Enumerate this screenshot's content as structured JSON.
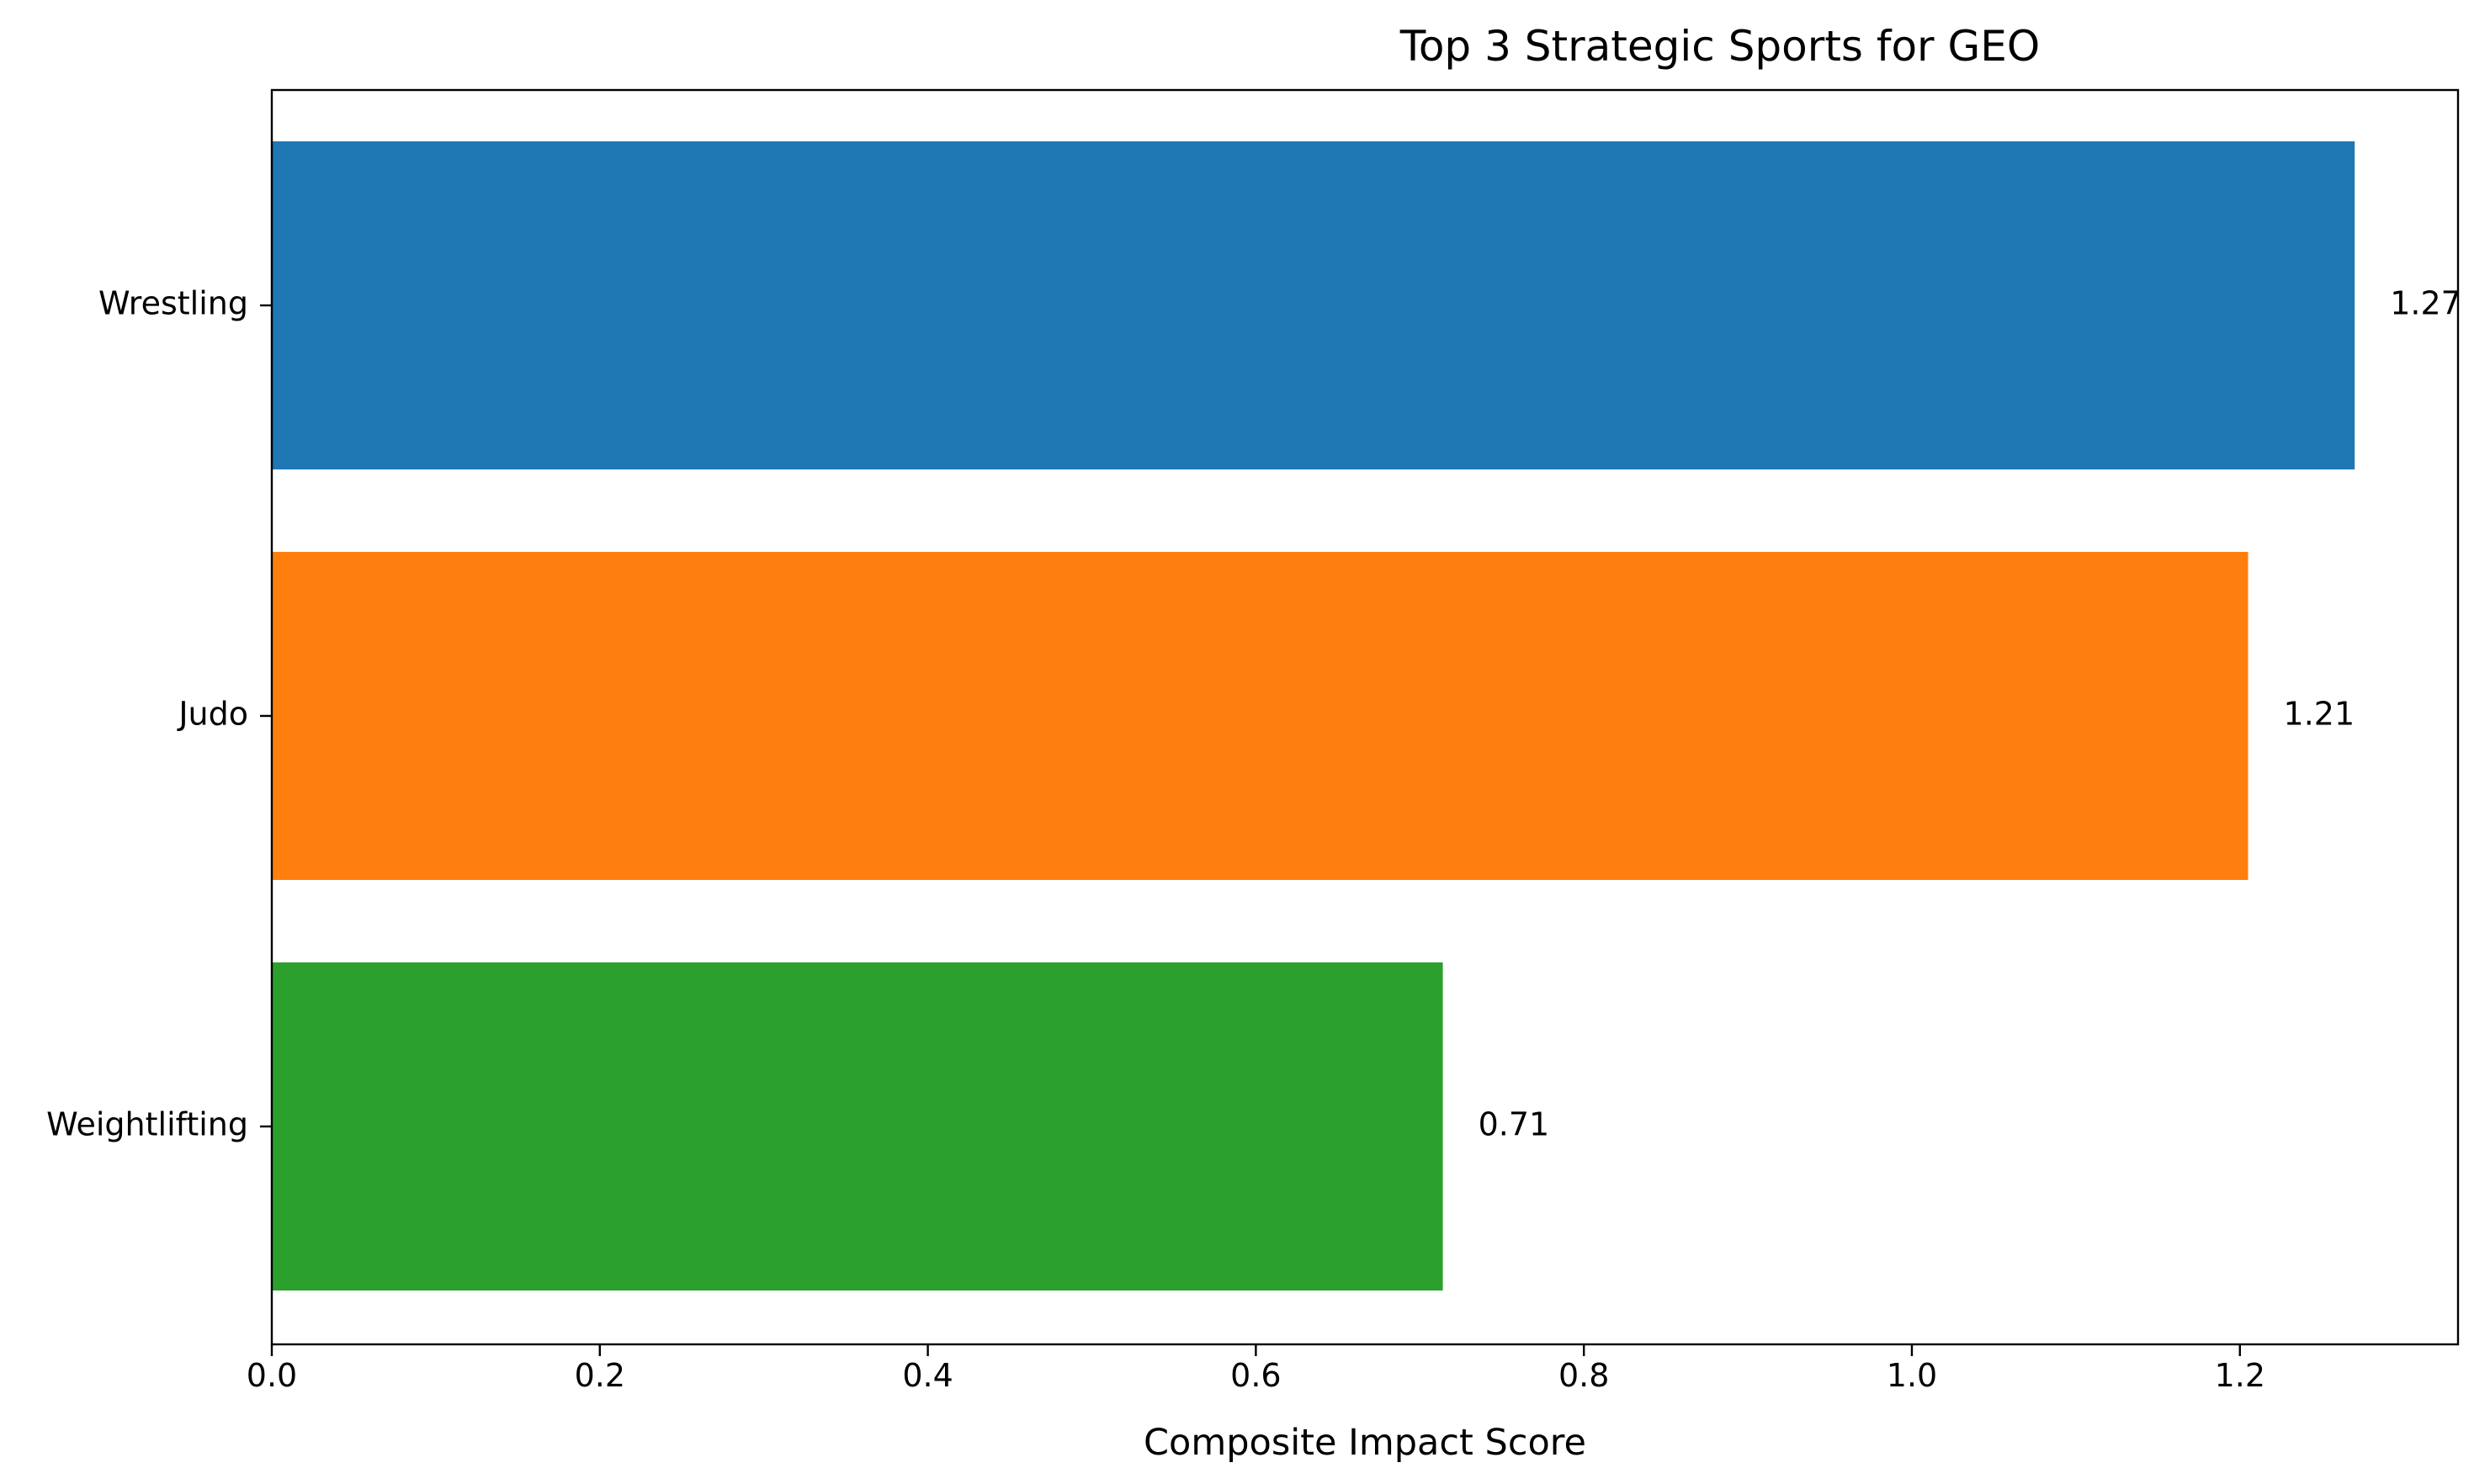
{
  "chart_data": {
    "type": "bar",
    "orientation": "horizontal",
    "title": "Top 3 Strategic Sports for GEO",
    "xlabel": "Composite Impact Score",
    "ylabel": "",
    "categories": [
      "Wrestling",
      "Judo",
      "Weightlifting"
    ],
    "values": [
      1.27,
      1.205,
      0.714
    ],
    "data_labels": [
      "1.27",
      "1.21",
      "0.71"
    ],
    "colors": [
      "#1f77b4",
      "#ff7f0e",
      "#2ca02c"
    ],
    "xlim": [
      0,
      1.333
    ],
    "xticks": [
      0.0,
      0.2,
      0.4,
      0.6,
      0.8,
      1.0,
      1.2
    ],
    "xtick_labels": [
      "0.0",
      "0.2",
      "0.4",
      "0.6",
      "0.8",
      "1.0",
      "1.2"
    ],
    "grid": false,
    "legend": "none"
  }
}
